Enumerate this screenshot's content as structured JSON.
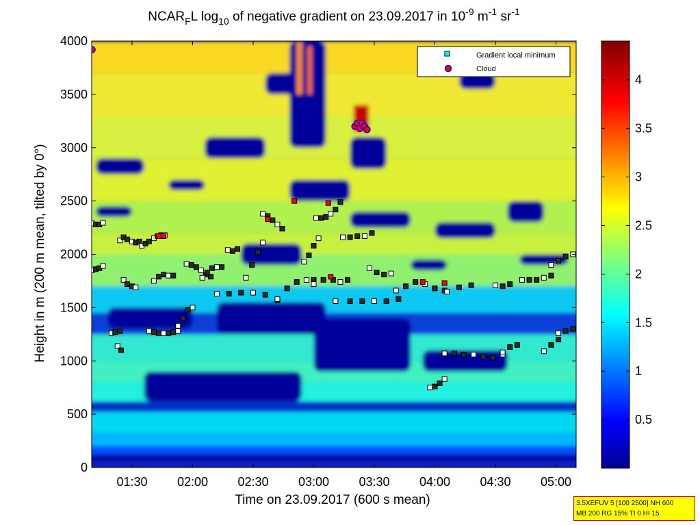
{
  "title": {
    "prefix": "NCAR",
    "sub1": "F",
    "mid": "L log",
    "sub2": "10",
    "text": " of negative gradient on 23.09.2017 in 10",
    "sup1": "-9",
    "unit1": " m",
    "sup2": "-1",
    "unit2": " sr",
    "sup3": "-1"
  },
  "xlabel": "Time on 23.09.2017 (600 s mean)",
  "ylabel": "Height in m (200 m mean, tilted by 0°)",
  "legend": {
    "minimum_label": "Gradient local minimum",
    "cloud_label": "Cloud"
  },
  "info_box": {
    "line1": "3.5XEFUV 5 [100 2500] NH 600",
    "line2": "MB 200 RG 15% TI 0 HI 15"
  },
  "colors": {
    "background_low": "#00008f",
    "minimum_marker": "#00ffff",
    "cloud_marker_fill": "#ff0000",
    "cloud_marker_edge": "#0000ff"
  },
  "chart_data": {
    "type": "heatmap",
    "colormap": "jet",
    "x_range_hours": [
      1.1667,
      5.1667
    ],
    "xticks": [
      {
        "value": 1.5,
        "label": "01:30"
      },
      {
        "value": 2.0,
        "label": "02:00"
      },
      {
        "value": 2.5,
        "label": "02:30"
      },
      {
        "value": 3.0,
        "label": "03:00"
      },
      {
        "value": 3.5,
        "label": "03:30"
      },
      {
        "value": 4.0,
        "label": "04:00"
      },
      {
        "value": 4.5,
        "label": "04:30"
      },
      {
        "value": 5.0,
        "label": "05:00"
      }
    ],
    "ylim": [
      0,
      4000
    ],
    "yticks": [
      0,
      500,
      1000,
      1500,
      2000,
      2500,
      3000,
      3500,
      4000
    ],
    "clim": [
      0,
      4.4
    ],
    "colorbar_ticks": [
      0.5,
      1,
      1.5,
      2,
      2.5,
      3,
      3.5,
      4
    ],
    "legend_position": "top-right",
    "gradient_minimum_series": [
      {
        "t": [
          1.17,
          1.2,
          1.23,
          1.26
        ],
        "h": [
          2290,
          2280,
          2280,
          2295
        ]
      },
      {
        "t": [
          1.17,
          1.2,
          1.23,
          1.26
        ],
        "h": [
          1850,
          1860,
          1870,
          1890
        ]
      },
      {
        "t": [
          1.33,
          1.36,
          1.4
        ],
        "h": [
          1260,
          1270,
          1280
        ]
      },
      {
        "t": [
          1.38,
          1.41
        ],
        "h": [
          1140,
          1100
        ]
      },
      {
        "t": [
          1.4,
          1.43,
          1.46,
          1.5,
          1.53,
          1.56
        ],
        "h": [
          2130,
          2160,
          2140,
          2120,
          2110,
          2120
        ]
      },
      {
        "t": [
          1.43,
          1.46,
          1.5,
          1.53
        ],
        "h": [
          1760,
          1720,
          1700,
          1690
        ]
      },
      {
        "t": [
          1.58,
          1.61,
          1.64,
          1.68,
          1.71,
          1.74,
          1.77
        ],
        "h": [
          2080,
          2100,
          2120,
          2150,
          2170,
          2180,
          2180
        ]
      },
      {
        "t": [
          1.64,
          1.68,
          1.72,
          1.76,
          1.8,
          1.84,
          1.88
        ],
        "h": [
          1280,
          1270,
          1260,
          1260,
          1260,
          1270,
          1280
        ]
      },
      {
        "t": [
          1.68,
          1.72,
          1.76,
          1.8,
          1.84
        ],
        "h": [
          1750,
          1790,
          1810,
          1800,
          1800
        ]
      },
      {
        "t": [
          1.88,
          1.92,
          1.96,
          2.0
        ],
        "h": [
          1330,
          1400,
          1480,
          1500
        ]
      },
      {
        "t": [
          1.95,
          1.99,
          2.03,
          2.07,
          2.11,
          2.15
        ],
        "h": [
          1910,
          1900,
          1880,
          1850,
          1810,
          1790
        ]
      },
      {
        "t": [
          2.08,
          2.12,
          2.16,
          2.2,
          2.24
        ],
        "h": [
          1780,
          1830,
          1870,
          1880,
          1880
        ]
      },
      {
        "t": [
          2.2,
          2.3,
          2.4,
          2.5,
          2.6,
          2.7
        ],
        "h": [
          1630,
          1630,
          1640,
          1640,
          1620,
          1570
        ]
      },
      {
        "t": [
          2.29,
          2.33,
          2.37
        ],
        "h": [
          2040,
          2030,
          2050
        ]
      },
      {
        "t": [
          2.44,
          2.49,
          2.54,
          2.58
        ],
        "h": [
          1780,
          1900,
          2020,
          2110
        ]
      },
      {
        "t": [
          2.58,
          2.62,
          2.66,
          2.7,
          2.74
        ],
        "h": [
          2380,
          2360,
          2320,
          2280,
          2240
        ]
      },
      {
        "t": [
          2.7,
          2.78,
          2.86,
          2.94,
          3.0
        ],
        "h": [
          1580,
          1680,
          1740,
          1760,
          1760
        ]
      },
      {
        "t": [
          2.92,
          2.96,
          3.0,
          3.04
        ],
        "h": [
          1930,
          1990,
          2080,
          2150
        ]
      },
      {
        "t": [
          3.02,
          3.06,
          3.1,
          3.14,
          3.18,
          3.22
        ],
        "h": [
          2340,
          2340,
          2350,
          2380,
          2420,
          2490
        ]
      },
      {
        "t": [
          3.0,
          3.08,
          3.16,
          3.22,
          3.28
        ],
        "h": [
          1720,
          1760,
          1760,
          1740,
          1760
        ]
      },
      {
        "t": [
          3.18,
          3.3,
          3.4,
          3.5,
          3.6,
          3.7
        ],
        "h": [
          1560,
          1560,
          1560,
          1560,
          1560,
          1580
        ]
      },
      {
        "t": [
          3.24,
          3.3,
          3.36,
          3.42,
          3.48
        ],
        "h": [
          2160,
          2160,
          2170,
          2170,
          2200
        ]
      },
      {
        "t": [
          3.46,
          3.52,
          3.58,
          3.64
        ],
        "h": [
          1870,
          1830,
          1810,
          1820
        ]
      },
      {
        "t": [
          3.68,
          3.76,
          3.84,
          3.92,
          4.0,
          4.08
        ],
        "h": [
          1660,
          1700,
          1740,
          1720,
          1680,
          1660
        ]
      },
      {
        "t": [
          3.96,
          4.0,
          4.04,
          4.08
        ],
        "h": [
          750,
          760,
          790,
          830
        ]
      },
      {
        "t": [
          4.08,
          4.16,
          4.24,
          4.32,
          4.4,
          4.48,
          4.56
        ],
        "h": [
          1070,
          1070,
          1060,
          1060,
          1040,
          1030,
          1060
        ]
      },
      {
        "t": [
          4.1,
          4.2,
          4.3
        ],
        "h": [
          1650,
          1690,
          1710
        ]
      },
      {
        "t": [
          4.5,
          4.56,
          4.62
        ],
        "h": [
          1710,
          1700,
          1720
        ]
      },
      {
        "t": [
          4.56,
          4.62,
          4.68
        ],
        "h": [
          1080,
          1130,
          1150
        ]
      },
      {
        "t": [
          4.72,
          4.78,
          4.84,
          4.9,
          4.96
        ],
        "h": [
          1760,
          1760,
          1760,
          1780,
          1800
        ]
      },
      {
        "t": [
          4.9,
          4.96,
          5.02
        ],
        "h": [
          1090,
          1150,
          1200
        ]
      },
      {
        "t": [
          4.96,
          5.02,
          5.08,
          5.14
        ],
        "h": [
          1900,
          1940,
          1980,
          2000
        ]
      },
      {
        "t": [
          5.02,
          5.08,
          5.14
        ],
        "h": [
          1260,
          1280,
          1300
        ]
      }
    ],
    "red_minimum_points": [
      {
        "t": 1.72,
        "h": 2170
      },
      {
        "t": 1.76,
        "h": 2170
      },
      {
        "t": 2.62,
        "h": 2330
      },
      {
        "t": 2.84,
        "h": 2500
      },
      {
        "t": 3.12,
        "h": 2480
      },
      {
        "t": 3.14,
        "h": 1790
      },
      {
        "t": 3.9,
        "h": 1740
      },
      {
        "t": 4.08,
        "h": 1730
      }
    ],
    "cloud_points": [
      {
        "t": 1.17,
        "h": 3920
      },
      {
        "t": 3.34,
        "h": 3200
      },
      {
        "t": 3.36,
        "h": 3230
      },
      {
        "t": 3.38,
        "h": 3180
      },
      {
        "t": 3.4,
        "h": 3230
      },
      {
        "t": 3.42,
        "h": 3200
      },
      {
        "t": 3.44,
        "h": 3170
      }
    ]
  }
}
